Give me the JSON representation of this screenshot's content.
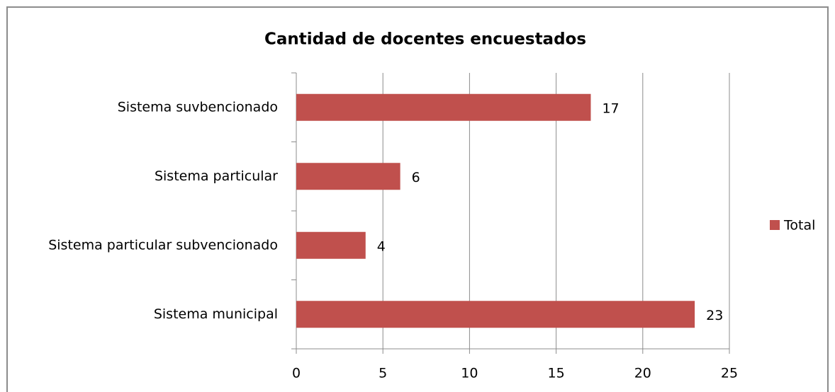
{
  "chart_data": {
    "type": "bar",
    "orientation": "horizontal",
    "title": "Cantidad de docentes encuestados",
    "categories": [
      "Sistema suvbencionado",
      "Sistema particular",
      "Sistema particular subvencionado",
      "Sistema municipal"
    ],
    "series": [
      {
        "name": "Total",
        "color": "#c0504d",
        "values": [
          17,
          6,
          4,
          23
        ]
      }
    ],
    "xlim": [
      0,
      25
    ],
    "xticks": [
      0,
      5,
      10,
      15,
      20,
      25
    ],
    "grid": true,
    "legend": "right"
  }
}
